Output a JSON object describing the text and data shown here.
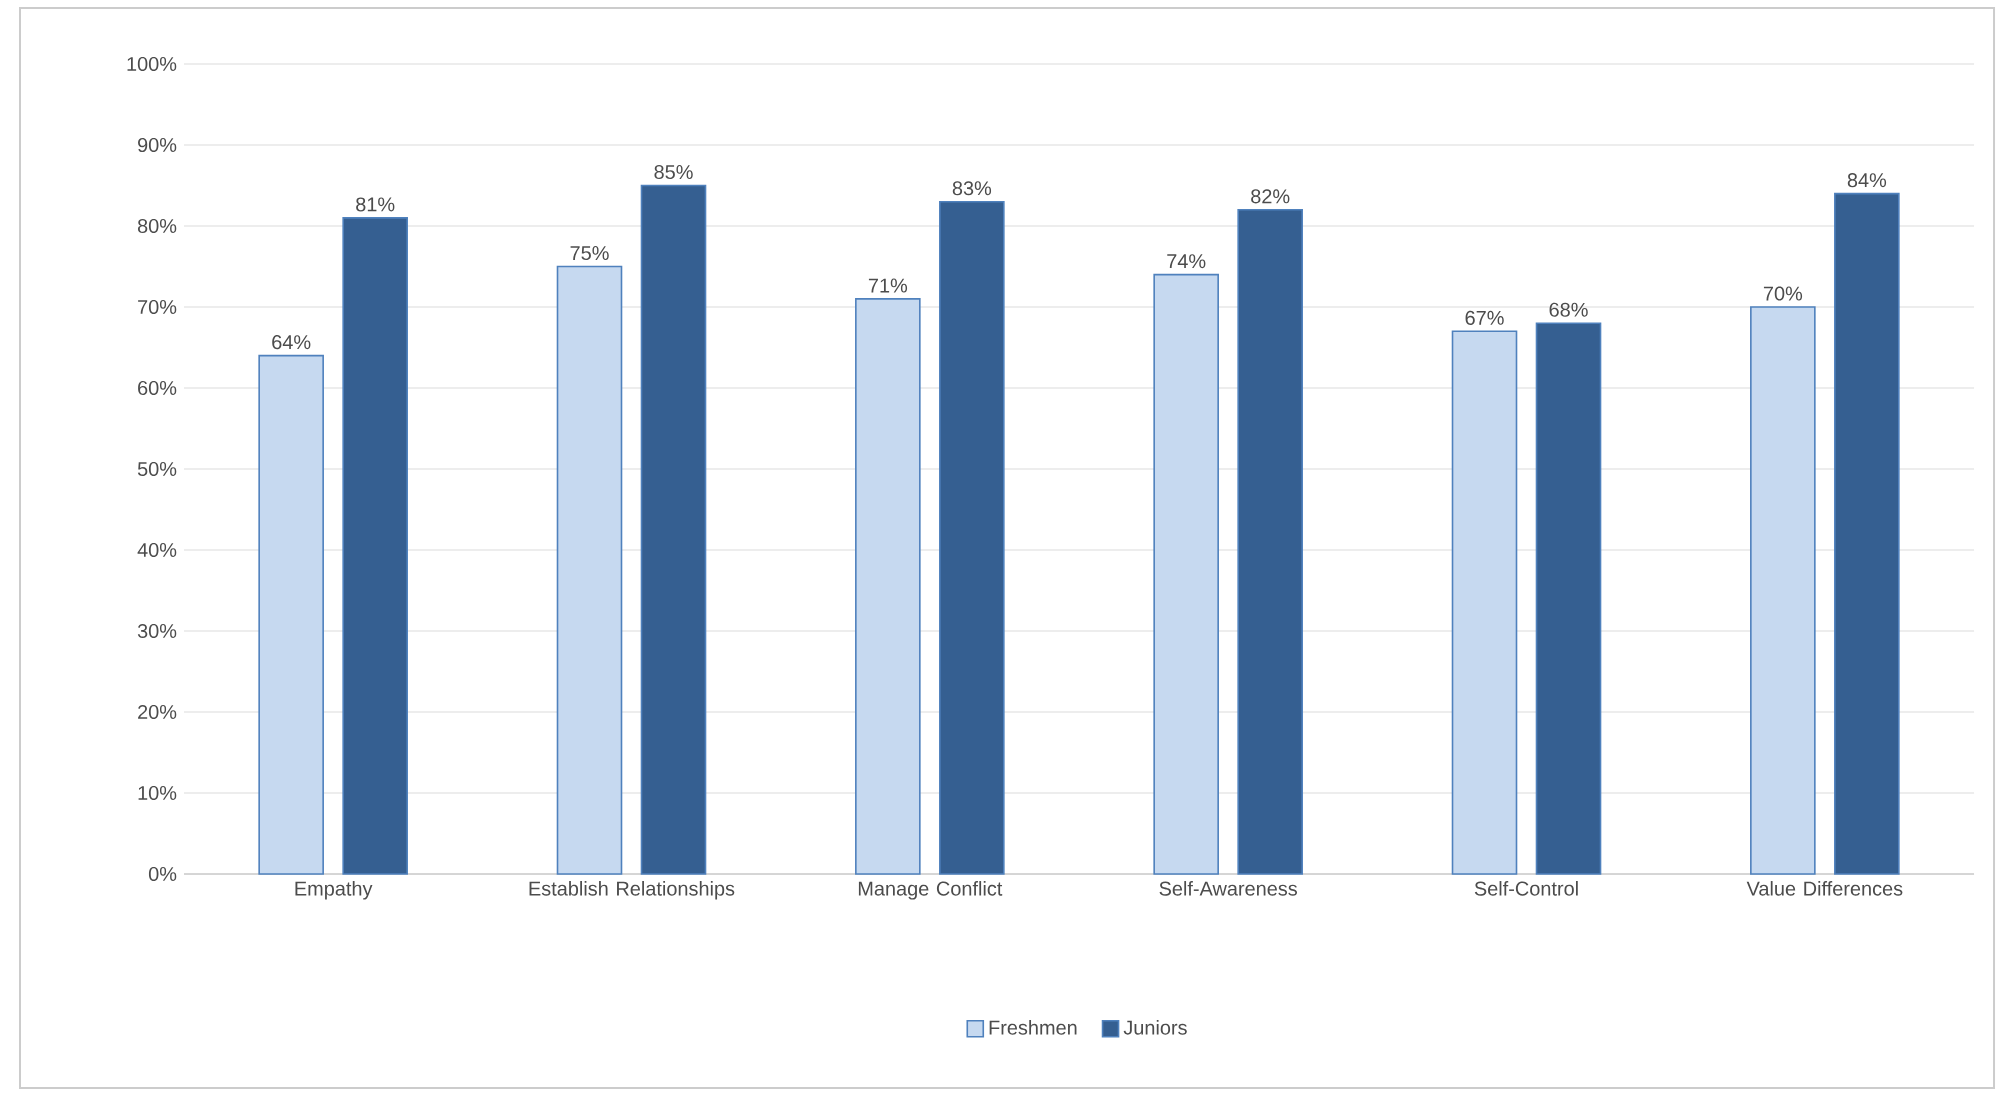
{
  "chart_data": {
    "type": "bar",
    "categories": [
      "Empathy",
      "Establish Relationships",
      "Manage Conflict",
      "Self-Awareness",
      "Self-Control",
      "Value Differences"
    ],
    "series": [
      {
        "name": "Freshmen",
        "color": "#c6d9f0",
        "values": [
          64,
          75,
          71,
          74,
          67,
          70
        ],
        "value_labels": [
          "64%",
          "75%",
          "71%",
          "74%",
          "67%",
          "70%"
        ]
      },
      {
        "name": "Juniors",
        "color": "#355f91",
        "values": [
          81,
          85,
          83,
          82,
          68,
          84
        ],
        "value_labels": [
          "81%",
          "85%",
          "83%",
          "82%",
          "68%",
          "84%"
        ]
      }
    ],
    "ylim": [
      0,
      100
    ],
    "yticks": [
      {
        "value": 0,
        "label": "0%"
      },
      {
        "value": 10,
        "label": "10%"
      },
      {
        "value": 20,
        "label": "20%"
      },
      {
        "value": 30,
        "label": "30%"
      },
      {
        "value": 40,
        "label": "40%"
      },
      {
        "value": 50,
        "label": "50%"
      },
      {
        "value": 60,
        "label": "60%"
      },
      {
        "value": 70,
        "label": "70%"
      },
      {
        "value": 80,
        "label": "80%"
      },
      {
        "value": 90,
        "label": "90%"
      },
      {
        "value": 100,
        "label": "100%"
      }
    ],
    "grid": "y",
    "legend": "bottom"
  }
}
